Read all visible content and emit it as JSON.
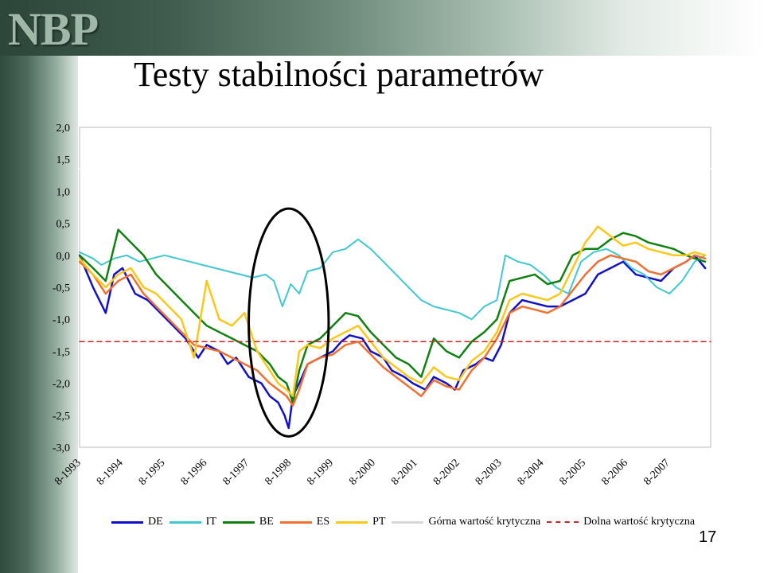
{
  "slide": {
    "logo_text": "NBP",
    "title": "Testy stabilności parametrów",
    "page_number": "17"
  },
  "chart_data": {
    "type": "line",
    "title": "",
    "xlabel": "",
    "ylabel": "",
    "ylim": [
      -3.0,
      2.0
    ],
    "y_ticks": [
      "2,0",
      "1,5",
      "1,0",
      "0,5",
      "0,0",
      "-0,5",
      "-1,0",
      "-1,5",
      "-2,0",
      "-2,5",
      "-3,0"
    ],
    "y_tick_values": [
      2.0,
      1.5,
      1.0,
      0.5,
      0.0,
      -0.5,
      -1.0,
      -1.5,
      -2.0,
      -2.5,
      -3.0
    ],
    "x_ticks": [
      "8-1993",
      "8-1994",
      "8-1995",
      "8-1996",
      "8-1997",
      "8-1998",
      "8-1999",
      "8-2000",
      "8-2001",
      "8-2002",
      "8-2003",
      "8-2004",
      "8-2005",
      "8-2006",
      "8-2007"
    ],
    "x_tick_values": [
      1993.58,
      1994.58,
      1995.58,
      1996.58,
      1997.58,
      1998.58,
      1999.58,
      2000.58,
      2001.58,
      2002.58,
      2003.58,
      2004.58,
      2005.58,
      2006.58,
      2007.58
    ],
    "xlim": [
      1993.58,
      2008.58
    ],
    "grid": false,
    "legend_position": "bottom",
    "series": [
      {
        "name": "DE",
        "color": "#1010c8",
        "width": 2.5,
        "x": [
          1993.58,
          1993.9,
          1994.2,
          1994.4,
          1994.6,
          1994.9,
          1995.2,
          1995.5,
          1995.8,
          1996.1,
          1996.4,
          1996.6,
          1996.9,
          1997.1,
          1997.3,
          1997.6,
          1997.9,
          1998.1,
          1998.3,
          1998.45,
          1998.55,
          1998.65,
          1998.8,
          1999.0,
          1999.3,
          1999.6,
          1999.8,
          2000.0,
          2000.3,
          2000.5,
          2000.8,
          2001.0,
          2001.3,
          2001.5,
          2001.8,
          2002.0,
          2002.3,
          2002.5,
          2002.7,
          2003.0,
          2003.2,
          2003.4,
          2003.6,
          2003.8,
          2004.1,
          2004.4,
          2004.7,
          2005.0,
          2005.3,
          2005.6,
          2005.9,
          2006.2,
          2006.5,
          2006.8,
          2007.1,
          2007.4,
          2007.7,
          2008.0,
          2008.2,
          2008.45
        ],
        "y": [
          0.0,
          -0.5,
          -0.9,
          -0.3,
          -0.2,
          -0.6,
          -0.7,
          -0.9,
          -1.1,
          -1.3,
          -1.6,
          -1.4,
          -1.5,
          -1.7,
          -1.6,
          -1.9,
          -2.0,
          -2.2,
          -2.3,
          -2.5,
          -2.7,
          -2.2,
          -2.0,
          -1.7,
          -1.6,
          -1.5,
          -1.35,
          -1.25,
          -1.3,
          -1.5,
          -1.6,
          -1.8,
          -1.9,
          -2.0,
          -2.1,
          -1.9,
          -2.0,
          -2.1,
          -1.8,
          -1.7,
          -1.6,
          -1.65,
          -1.4,
          -0.9,
          -0.7,
          -0.75,
          -0.8,
          -0.8,
          -0.7,
          -0.6,
          -0.3,
          -0.2,
          -0.1,
          -0.3,
          -0.35,
          -0.4,
          -0.2,
          -0.1,
          0.0,
          -0.2
        ]
      },
      {
        "name": "IT",
        "color": "#40c8d0",
        "width": 2.0,
        "x": [
          1993.58,
          1993.9,
          1994.1,
          1994.4,
          1994.7,
          1995.0,
          1995.3,
          1995.6,
          1995.9,
          1996.2,
          1996.5,
          1996.8,
          1997.1,
          1997.4,
          1997.7,
          1998.0,
          1998.2,
          1998.4,
          1998.6,
          1998.8,
          1999.0,
          1999.3,
          1999.6,
          1999.9,
          2000.2,
          2000.5,
          2000.8,
          2001.1,
          2001.4,
          2001.7,
          2002.0,
          2002.3,
          2002.6,
          2002.9,
          2003.2,
          2003.5,
          2003.7,
          2004.0,
          2004.3,
          2004.6,
          2004.9,
          2005.2,
          2005.5,
          2005.8,
          2006.1,
          2006.4,
          2006.7,
          2007.0,
          2007.3,
          2007.6,
          2007.9,
          2008.2,
          2008.45
        ],
        "y": [
          0.05,
          -0.05,
          -0.15,
          -0.05,
          0.0,
          -0.1,
          -0.05,
          0.0,
          -0.05,
          -0.1,
          -0.15,
          -0.2,
          -0.25,
          -0.3,
          -0.35,
          -0.3,
          -0.4,
          -0.8,
          -0.45,
          -0.6,
          -0.25,
          -0.2,
          0.05,
          0.1,
          0.25,
          0.1,
          -0.1,
          -0.3,
          -0.5,
          -0.7,
          -0.8,
          -0.85,
          -0.9,
          -1.0,
          -0.8,
          -0.7,
          0.0,
          -0.1,
          -0.15,
          -0.3,
          -0.5,
          -0.6,
          -0.1,
          0.05,
          0.1,
          0.0,
          -0.2,
          -0.3,
          -0.5,
          -0.6,
          -0.4,
          -0.1,
          0.0
        ]
      },
      {
        "name": "BE",
        "color": "#108010",
        "width": 2.5,
        "x": [
          1993.58,
          1993.9,
          1994.2,
          1994.5,
          1994.8,
          1995.1,
          1995.4,
          1995.7,
          1996.0,
          1996.3,
          1996.6,
          1996.9,
          1997.2,
          1997.5,
          1997.8,
          1998.1,
          1998.3,
          1998.5,
          1998.65,
          1998.8,
          1999.0,
          1999.3,
          1999.6,
          1999.9,
          2000.2,
          2000.5,
          2000.8,
          2001.1,
          2001.4,
          2001.7,
          2002.0,
          2002.3,
          2002.6,
          2002.9,
          2003.2,
          2003.5,
          2003.8,
          2004.1,
          2004.4,
          2004.7,
          2005.0,
          2005.3,
          2005.6,
          2005.9,
          2006.2,
          2006.5,
          2006.8,
          2007.1,
          2007.4,
          2007.7,
          2008.0,
          2008.2,
          2008.45
        ],
        "y": [
          0.0,
          -0.2,
          -0.4,
          0.4,
          0.2,
          0.0,
          -0.3,
          -0.5,
          -0.7,
          -0.9,
          -1.1,
          -1.2,
          -1.3,
          -1.4,
          -1.5,
          -1.7,
          -1.9,
          -2.0,
          -2.3,
          -1.8,
          -1.4,
          -1.3,
          -1.1,
          -0.9,
          -0.95,
          -1.2,
          -1.4,
          -1.6,
          -1.7,
          -1.9,
          -1.3,
          -1.5,
          -1.6,
          -1.35,
          -1.2,
          -1.0,
          -0.4,
          -0.35,
          -0.3,
          -0.45,
          -0.4,
          0.0,
          0.1,
          0.1,
          0.25,
          0.35,
          0.3,
          0.2,
          0.15,
          0.1,
          0.0,
          -0.05,
          -0.1
        ]
      },
      {
        "name": "ES",
        "color": "#f07030",
        "width": 2.5,
        "x": [
          1993.58,
          1993.9,
          1994.2,
          1994.5,
          1994.8,
          1995.1,
          1995.4,
          1995.7,
          1996.0,
          1996.3,
          1996.6,
          1996.9,
          1997.2,
          1997.5,
          1997.8,
          1998.1,
          1998.3,
          1998.5,
          1998.65,
          1998.8,
          1999.0,
          1999.3,
          1999.6,
          1999.9,
          2000.2,
          2000.5,
          2000.8,
          2001.1,
          2001.4,
          2001.7,
          2002.0,
          2002.3,
          2002.6,
          2002.9,
          2003.2,
          2003.5,
          2003.8,
          2004.1,
          2004.4,
          2004.7,
          2005.0,
          2005.3,
          2005.6,
          2005.9,
          2006.2,
          2006.5,
          2006.8,
          2007.1,
          2007.4,
          2007.7,
          2008.0,
          2008.2,
          2008.45
        ],
        "y": [
          -0.1,
          -0.3,
          -0.6,
          -0.4,
          -0.3,
          -0.6,
          -0.8,
          -1.0,
          -1.2,
          -1.4,
          -1.45,
          -1.5,
          -1.6,
          -1.7,
          -1.8,
          -2.0,
          -2.1,
          -2.2,
          -2.35,
          -2.1,
          -1.7,
          -1.6,
          -1.55,
          -1.4,
          -1.35,
          -1.55,
          -1.75,
          -1.9,
          -2.05,
          -2.2,
          -1.95,
          -2.05,
          -2.1,
          -1.8,
          -1.6,
          -1.3,
          -0.9,
          -0.8,
          -0.85,
          -0.9,
          -0.8,
          -0.55,
          -0.3,
          -0.1,
          0.0,
          -0.05,
          -0.1,
          -0.25,
          -0.3,
          -0.2,
          -0.1,
          0.0,
          -0.05
        ]
      },
      {
        "name": "PT",
        "color": "#f8c81a",
        "width": 2.5,
        "x": [
          1993.58,
          1993.9,
          1994.2,
          1994.5,
          1994.8,
          1995.1,
          1995.4,
          1995.7,
          1996.0,
          1996.3,
          1996.6,
          1996.9,
          1997.2,
          1997.5,
          1997.8,
          1998.1,
          1998.3,
          1998.5,
          1998.65,
          1998.8,
          1999.0,
          1999.3,
          1999.6,
          1999.9,
          2000.2,
          2000.5,
          2000.8,
          2001.1,
          2001.4,
          2001.7,
          2002.0,
          2002.3,
          2002.6,
          2002.9,
          2003.2,
          2003.5,
          2003.8,
          2004.1,
          2004.4,
          2004.7,
          2005.0,
          2005.3,
          2005.6,
          2005.9,
          2006.2,
          2006.5,
          2006.8,
          2007.1,
          2007.4,
          2007.7,
          2008.0,
          2008.2,
          2008.45
        ],
        "y": [
          -0.05,
          -0.3,
          -0.5,
          -0.3,
          -0.2,
          -0.5,
          -0.6,
          -0.8,
          -1.0,
          -1.6,
          -0.4,
          -1.0,
          -1.1,
          -0.9,
          -1.5,
          -1.8,
          -2.0,
          -2.1,
          -2.2,
          -1.5,
          -1.4,
          -1.45,
          -1.3,
          -1.2,
          -1.1,
          -1.35,
          -1.6,
          -1.75,
          -1.9,
          -2.0,
          -1.75,
          -1.9,
          -1.95,
          -1.65,
          -1.5,
          -1.2,
          -0.7,
          -0.6,
          -0.65,
          -0.7,
          -0.6,
          -0.2,
          0.2,
          0.45,
          0.3,
          0.15,
          0.2,
          0.1,
          0.05,
          0.0,
          0.0,
          0.05,
          0.0
        ]
      },
      {
        "name": "Górna wartość krytyczna",
        "color": "#ffffff",
        "width": 1.5,
        "dash": "none",
        "x": [
          1993.58,
          2008.58
        ],
        "y": [
          1.35,
          1.35
        ]
      },
      {
        "name": "Dolna wartość krytyczna",
        "color": "#d02020",
        "width": 1.5,
        "dash": "6,5",
        "x": [
          1993.58,
          2008.58
        ],
        "y": [
          -1.35,
          -1.35
        ]
      }
    ],
    "annotations": [
      {
        "type": "ellipse",
        "center_x": 1998.55,
        "center_y": -1.05,
        "radius_x": 0.95,
        "radius_y": 1.78,
        "color": "#000000"
      }
    ]
  }
}
